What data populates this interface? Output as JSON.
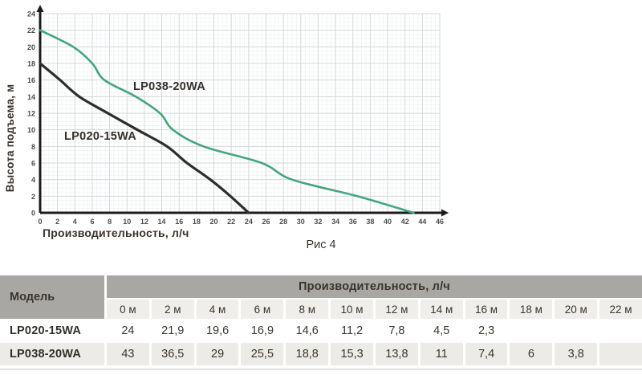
{
  "chart": {
    "ylabel": "Высота подъема, м",
    "xlabel": "Производительность, л/ч",
    "caption": "Рис 4"
  },
  "chart_data": {
    "type": "line",
    "title": "Рис 4",
    "xlabel": "Производительность, л/ч",
    "ylabel": "Высота подъема, м",
    "xlim": [
      0,
      46
    ],
    "ylim": [
      0,
      24
    ],
    "x_tick_step": 2,
    "y_tick_step": 2,
    "grid": true,
    "legend_position": "inline-labels",
    "series": [
      {
        "name": "LP038-20WA",
        "color": "#44a67c",
        "points": [
          [
            0,
            22
          ],
          [
            3.8,
            20
          ],
          [
            6,
            18
          ],
          [
            7.4,
            16
          ],
          [
            11,
            14
          ],
          [
            13.8,
            12
          ],
          [
            15.3,
            10
          ],
          [
            18.8,
            8
          ],
          [
            25.5,
            6
          ],
          [
            29,
            4
          ],
          [
            36.5,
            2
          ],
          [
            43,
            0
          ]
        ]
      },
      {
        "name": "LP020-15WA",
        "color": "#2d2d2d",
        "points": [
          [
            0,
            18
          ],
          [
            2.3,
            16
          ],
          [
            4.5,
            14
          ],
          [
            7.8,
            12
          ],
          [
            11.2,
            10
          ],
          [
            14.6,
            8
          ],
          [
            16.9,
            6
          ],
          [
            19.6,
            4
          ],
          [
            21.9,
            2
          ],
          [
            24,
            0
          ]
        ]
      }
    ]
  },
  "table": {
    "model_header": "Модель",
    "group_header": "Производительность, л/ч",
    "columns": [
      "0 м",
      "2 м",
      "4 м",
      "6 м",
      "8 м",
      "10 м",
      "12 м",
      "14 м",
      "16 м",
      "18 м",
      "20 м",
      "22 м"
    ],
    "rows": [
      {
        "model": "LP020-15WA",
        "values": [
          "24",
          "21,9",
          "19,6",
          "16,9",
          "14,6",
          "11,2",
          "7,8",
          "4,5",
          "2,3",
          "",
          "",
          ""
        ]
      },
      {
        "model": "LP038-20WA",
        "values": [
          "43",
          "36,5",
          "29",
          "25,5",
          "18,8",
          "15,3",
          "13,8",
          "11",
          "7,4",
          "6",
          "3,8",
          ""
        ]
      }
    ]
  }
}
